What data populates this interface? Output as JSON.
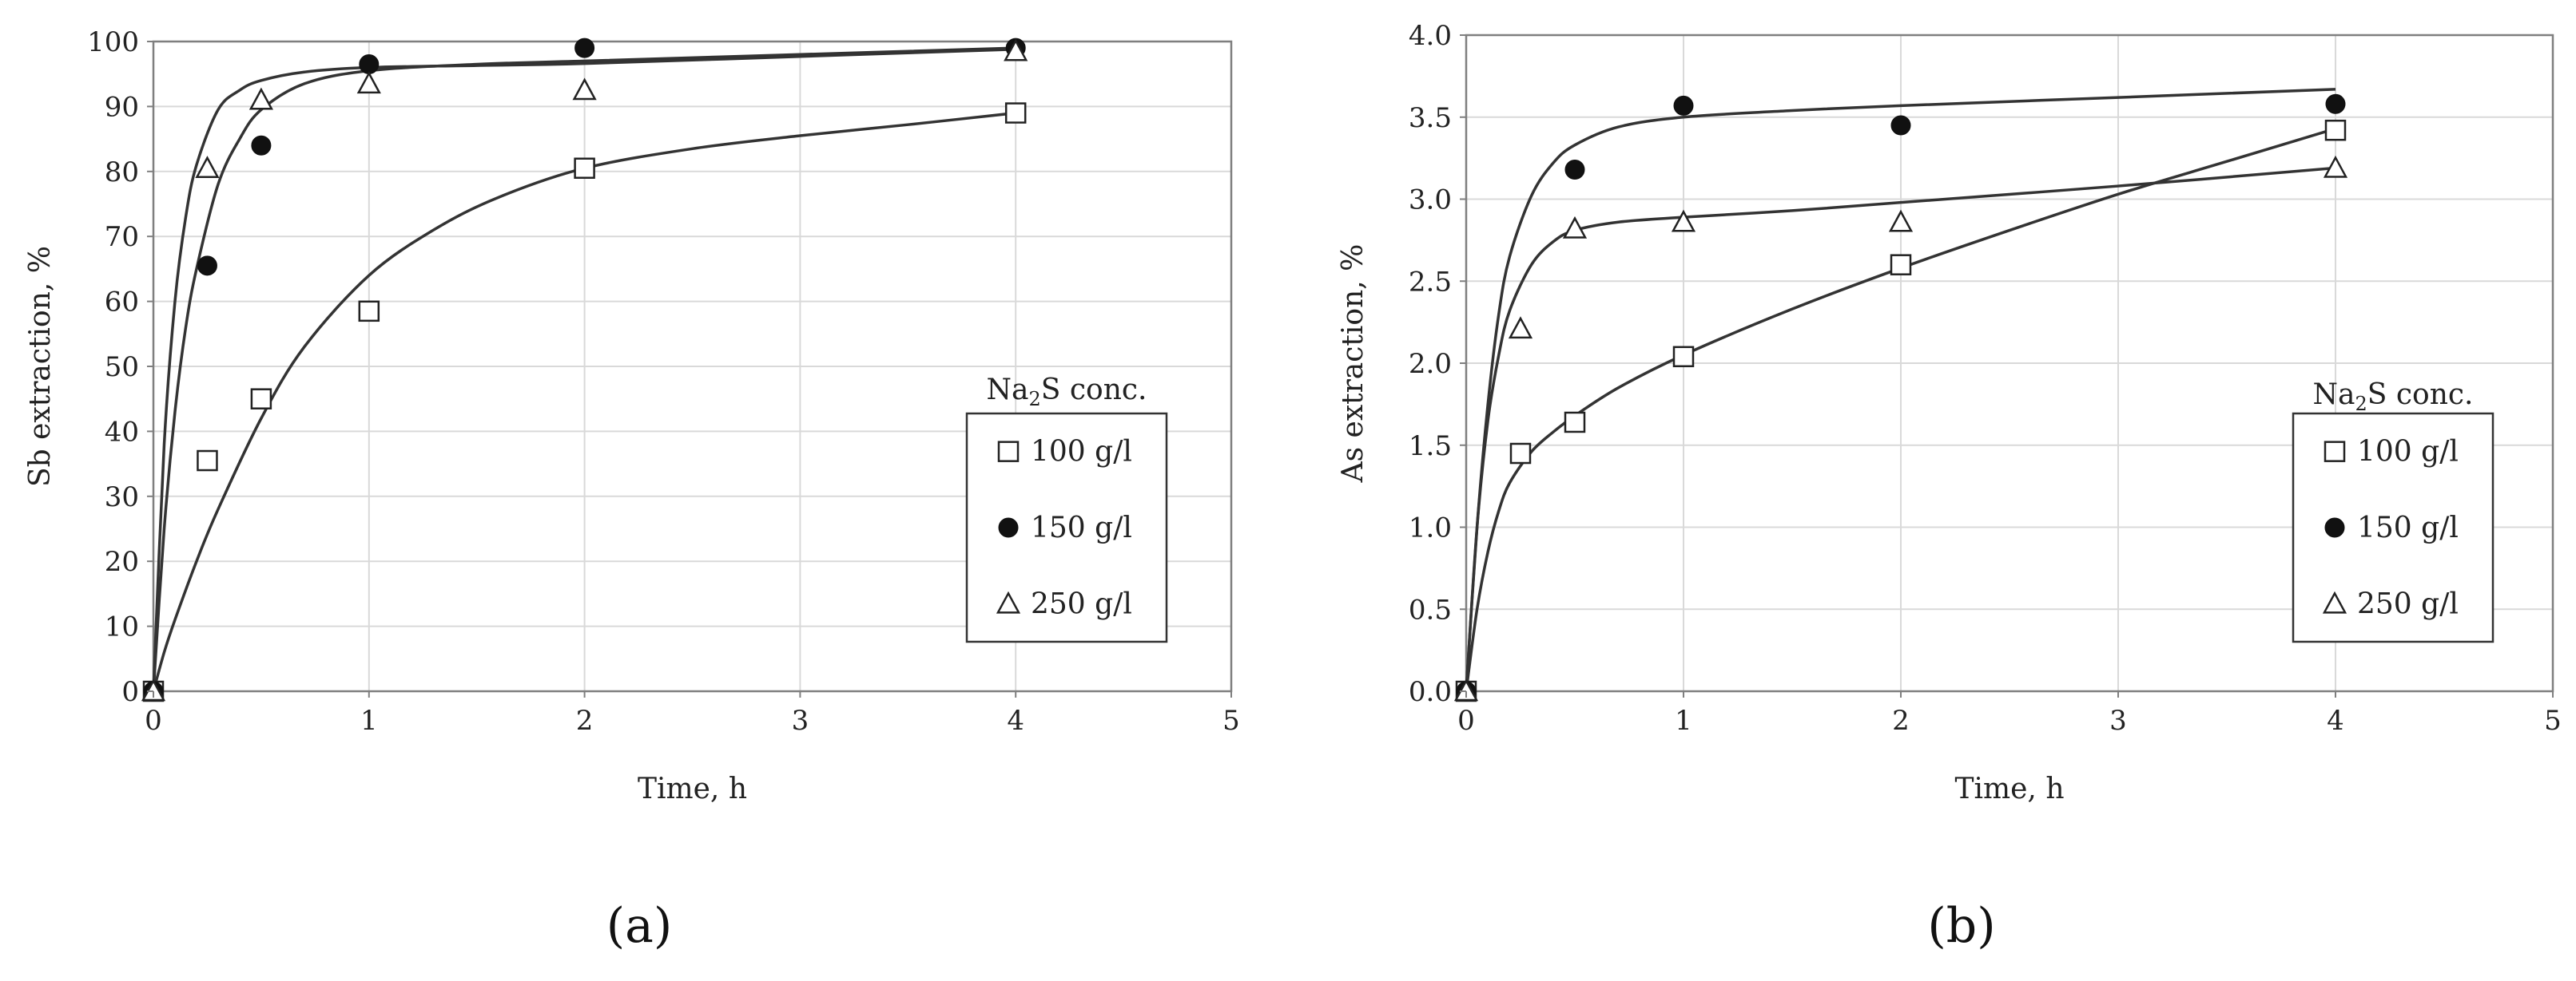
{
  "chart_data": [
    {
      "type": "scatter",
      "panel_caption": "(a)",
      "xlabel": "Time, h",
      "ylabel": "Sb extraction, %",
      "xlim": [
        0,
        5
      ],
      "ylim": [
        0,
        100
      ],
      "xticks": [
        "0",
        "1",
        "2",
        "3",
        "4",
        "5"
      ],
      "yticks": [
        "0",
        "10",
        "20",
        "30",
        "40",
        "50",
        "60",
        "70",
        "80",
        "90",
        "100"
      ],
      "grid": true,
      "legend_title_parts": [
        "Na",
        "2",
        "S conc."
      ],
      "legend_position": "right",
      "series": [
        {
          "name": "100 g/l",
          "marker": "square",
          "x": [
            0,
            0.25,
            0.5,
            1,
            2,
            4
          ],
          "y": [
            0,
            35.5,
            45,
            58.5,
            80.5,
            89
          ],
          "fit_x": [
            0,
            0.05,
            0.1,
            0.2,
            0.3,
            0.5,
            0.7,
            1,
            1.3,
            1.6,
            2,
            2.5,
            3,
            3.5,
            4
          ],
          "fit_y": [
            0,
            6,
            11,
            20,
            28,
            42,
            53,
            64,
            71,
            76,
            80.5,
            83.5,
            85.5,
            87.2,
            89
          ]
        },
        {
          "name": "150 g/l",
          "marker": "circle",
          "x": [
            0,
            0.25,
            0.5,
            1,
            2,
            4
          ],
          "y": [
            0,
            65.5,
            84,
            96.5,
            99,
            99
          ],
          "fit_x": [
            0,
            0.05,
            0.1,
            0.15,
            0.2,
            0.3,
            0.4,
            0.5,
            0.7,
            1,
            1.5,
            2,
            3,
            4
          ],
          "fit_y": [
            0,
            25,
            43,
            56,
            65,
            78,
            85,
            89.5,
            93.5,
            95.5,
            96.5,
            97,
            98,
            99
          ]
        },
        {
          "name": "250 g/l",
          "marker": "triangle",
          "x": [
            0,
            0.25,
            0.5,
            1,
            2,
            4
          ],
          "y": [
            0,
            80.5,
            91,
            93.5,
            92.5,
            98.5
          ],
          "fit_x": [
            0,
            0.05,
            0.1,
            0.15,
            0.2,
            0.3,
            0.4,
            0.5,
            0.7,
            1,
            1.5,
            2,
            3,
            4
          ],
          "fit_y": [
            0,
            38,
            60,
            73,
            81,
            89.5,
            92.5,
            94,
            95.3,
            96,
            96.3,
            96.6,
            97.7,
            98.8
          ]
        }
      ]
    },
    {
      "type": "scatter",
      "panel_caption": "(b)",
      "xlabel": "Time, h",
      "ylabel": "As extraction, %",
      "xlim": [
        0,
        5
      ],
      "ylim": [
        0,
        4
      ],
      "xticks": [
        "0",
        "1",
        "2",
        "3",
        "4",
        "5"
      ],
      "yticks": [
        "0.0",
        "0.5",
        "1.0",
        "1.5",
        "2.0",
        "2.5",
        "3.0",
        "3.5",
        "4.0"
      ],
      "grid": true,
      "legend_title_parts": [
        "Na",
        "2",
        "S conc."
      ],
      "legend_position": "right",
      "series": [
        {
          "name": "100 g/l",
          "marker": "square",
          "x": [
            0,
            0.25,
            0.5,
            1,
            2,
            4
          ],
          "y": [
            0,
            1.45,
            1.64,
            2.04,
            2.6,
            3.42
          ],
          "fit_x": [
            0,
            0.05,
            0.1,
            0.15,
            0.2,
            0.3,
            0.4,
            0.5,
            0.7,
            1,
            1.5,
            2,
            2.5,
            3,
            3.5,
            4
          ],
          "fit_y": [
            0,
            0.5,
            0.85,
            1.1,
            1.27,
            1.46,
            1.58,
            1.68,
            1.85,
            2.05,
            2.33,
            2.58,
            2.81,
            3.03,
            3.23,
            3.43
          ]
        },
        {
          "name": "150 g/l",
          "marker": "circle",
          "x": [
            0,
            0.5,
            1,
            2,
            4
          ],
          "y": [
            0,
            3.18,
            3.57,
            3.45,
            3.58
          ],
          "fit_x": [
            0,
            0.05,
            0.1,
            0.15,
            0.2,
            0.3,
            0.4,
            0.5,
            0.7,
            1,
            1.5,
            2,
            3,
            4
          ],
          "fit_y": [
            0,
            1.0,
            1.75,
            2.3,
            2.65,
            3.02,
            3.22,
            3.33,
            3.44,
            3.5,
            3.54,
            3.57,
            3.62,
            3.67
          ]
        },
        {
          "name": "250 g/l",
          "marker": "triangle",
          "x": [
            0,
            0.25,
            0.5,
            1,
            2,
            4
          ],
          "y": [
            0,
            2.21,
            2.82,
            2.86,
            2.86,
            3.19
          ],
          "fit_x": [
            0,
            0.05,
            0.1,
            0.15,
            0.2,
            0.3,
            0.4,
            0.5,
            0.7,
            1,
            1.5,
            2,
            3,
            4
          ],
          "fit_y": [
            0,
            1.0,
            1.65,
            2.05,
            2.32,
            2.6,
            2.74,
            2.81,
            2.86,
            2.89,
            2.93,
            2.98,
            3.08,
            3.19
          ]
        }
      ]
    }
  ]
}
